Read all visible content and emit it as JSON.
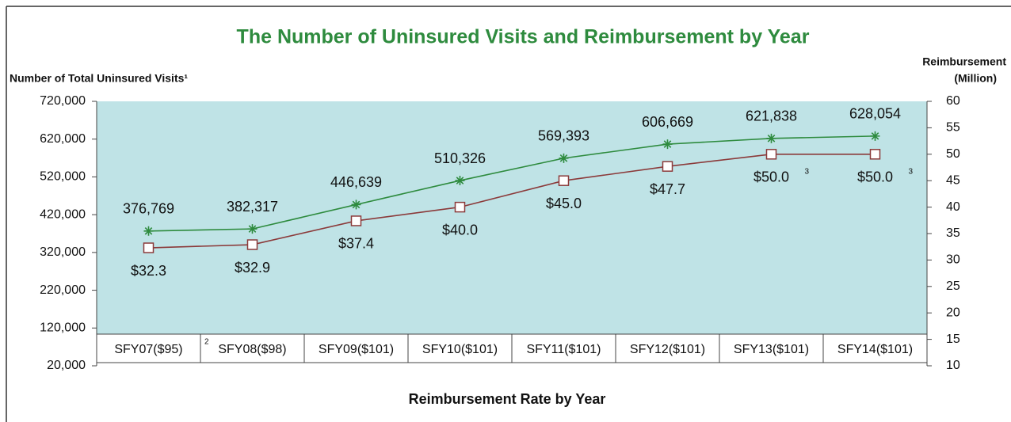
{
  "chart_data": {
    "type": "line",
    "title": "The Number of Uninsured Visits and Reimbursement  by Year",
    "x_label": "Reimbursement  Rate by Year",
    "y_label": "Number of Total Uninsured Visits¹",
    "y2_label": [
      "Reimbursement",
      "(Million)"
    ],
    "categories": [
      "SFY07($95)",
      "SFY08($98)",
      "SFY09($101)",
      "SFY10($101)",
      "SFY11($101)",
      "SFY12($101)",
      "SFY13($101)",
      "SFY14($101)"
    ],
    "category_notes": [
      null,
      "2",
      null,
      null,
      null,
      null,
      null,
      null
    ],
    "series": [
      {
        "color": "#2e8b3e",
        "marker": "star",
        "values": [
          376769,
          382317,
          446639,
          510326,
          569393,
          606669,
          621838,
          628054
        ],
        "value_labels": [
          "376,769",
          "382,317",
          "446,639",
          "510,326",
          "569,393",
          "606,669",
          "621,838",
          "628,054"
        ]
      },
      {
        "color": "#8b3a3a",
        "marker": "square",
        "axis": "y2",
        "values": [
          32.3,
          32.9,
          37.4,
          40.0,
          45.0,
          47.7,
          50.0,
          50.0
        ],
        "value_labels": [
          "$32.3",
          "$32.9",
          "$37.4",
          "$40.0",
          "$45.0",
          "$47.7",
          "$50.0",
          "$50.0"
        ],
        "label_notes": [
          null,
          null,
          null,
          null,
          null,
          null,
          "3",
          "3"
        ]
      }
    ],
    "ylim": [
      20000,
      720000
    ],
    "yticks": [
      {
        "value": 20000,
        "label": "20,000"
      },
      {
        "value": 120000,
        "label": "120,000"
      },
      {
        "value": 220000,
        "label": "220,000"
      },
      {
        "value": 320000,
        "label": "320,000"
      },
      {
        "value": 420000,
        "label": "420,000"
      },
      {
        "value": 520000,
        "label": "520,000"
      },
      {
        "value": 620000,
        "label": "620,000"
      },
      {
        "value": 720000,
        "label": "720,000"
      }
    ],
    "y2lim": [
      10,
      60
    ],
    "y2ticks": [
      10,
      15,
      20,
      25,
      30,
      35,
      40,
      45,
      50,
      55,
      60
    ],
    "background": "#bfe3e6"
  }
}
